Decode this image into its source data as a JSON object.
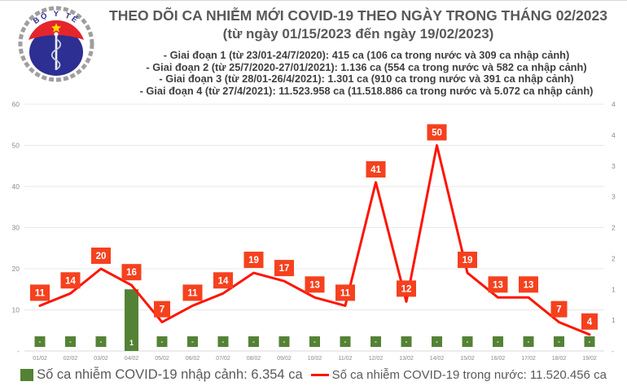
{
  "logo": {
    "top_text": "BỘ Y TẾ",
    "bottom_text": "MINISTRY OF HEALTH",
    "colors": {
      "blue": "#2d2f92",
      "red": "#e5252c",
      "star": "#ffdd00",
      "wreath": "#9f9f9f"
    }
  },
  "header": {
    "title": "THEO DÕI CA NHIỄM MỚI COVID-19 THEO NGÀY TRONG THÁNG 02/2023",
    "subtitle": "(từ ngày 01/15/2023 đến ngày 19/02/2023)",
    "phases": [
      "- Giai đoạn 1 (từ 23/01-24/7/2020): 415 ca (106 ca trong nước và 309 ca nhập cảnh)",
      "- Giai đoạn 2 (từ 25/7/2020-27/01/2021): 1.136 ca (554 ca trong nước và 582 ca nhập cảnh)",
      "- Giai đoạn 3 (từ 28/01-26/4/2021): 1.301 ca (910 ca trong nước và 391 ca nhập cảnh)",
      "- Giai đoạn 4 (từ 27/4/2021): 11.523.958 ca (11.518.886 ca trong nước và 5.072 ca nhập cảnh)"
    ]
  },
  "chart_data": {
    "type": "bar+line combo",
    "categories": [
      "01/02",
      "02/02",
      "03/02",
      "04/02",
      "05/02",
      "06/02",
      "07/02",
      "08/02",
      "09/02",
      "10/02",
      "11/02",
      "12/02",
      "13/02",
      "14/02",
      "15/02",
      "16/02",
      "17/02",
      "18/02",
      "19/02"
    ],
    "series": [
      {
        "name": "Số ca nhiễm COVID-19 nhập cảnh: 6.354 ca",
        "type": "bar",
        "axis": "right",
        "color": "#548235",
        "values": [
          0,
          0,
          0,
          1,
          0,
          0,
          0,
          0,
          0,
          0,
          0,
          0,
          0,
          0,
          0,
          0,
          0,
          0,
          0
        ],
        "labels": [
          "-",
          "-",
          "-",
          "1",
          "-",
          "-",
          "-",
          "-",
          "-",
          "-",
          "-",
          "-",
          "-",
          "-",
          "-",
          "-",
          "-",
          "-",
          "-"
        ]
      },
      {
        "name": "Số ca nhiễm COVID-19 trong nước: 11.520.456 ca",
        "type": "line",
        "axis": "left",
        "color": "#fe1505",
        "label_box_color": "#f5411e",
        "values": [
          11,
          14,
          20,
          16,
          7,
          11,
          14,
          19,
          17,
          13,
          11,
          41,
          12,
          50,
          19,
          13,
          13,
          7,
          4
        ]
      }
    ],
    "left_axis": {
      "min": 0,
      "max": 60,
      "step": 10,
      "ticks": [
        "-",
        "10",
        "20",
        "30",
        "40",
        "50",
        "60"
      ]
    },
    "right_axis": {
      "min": 0,
      "max": 4,
      "step": 0.5,
      "ticks": [
        "-",
        "1",
        "1",
        "2",
        "2",
        "3",
        "3",
        "4",
        "4"
      ]
    },
    "grid": "horizontal",
    "legend_position": "bottom",
    "tick_color": "#8a8a8a",
    "grid_color": "#e8e8e8",
    "axis_line_color": "#d9d9d9"
  }
}
